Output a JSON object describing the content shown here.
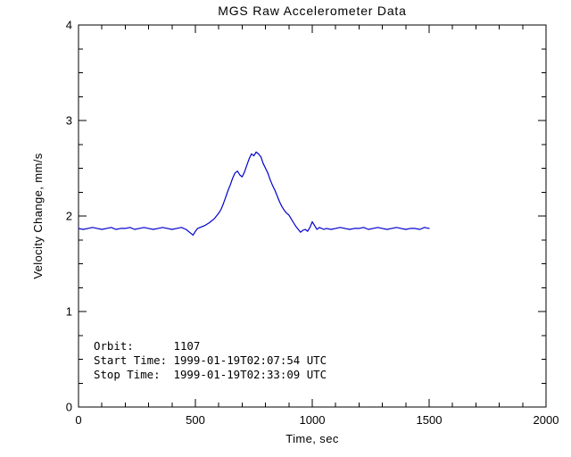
{
  "chart_data": {
    "type": "line",
    "title": "MGS Raw Accelerometer Data",
    "xlabel": "Time, sec",
    "ylabel": "Velocity Change, mm/s",
    "xlim": [
      0,
      2000
    ],
    "ylim": [
      0,
      4
    ],
    "xticks": [
      0,
      500,
      1000,
      1500,
      2000
    ],
    "yticks": [
      0,
      1,
      2,
      3,
      4
    ],
    "x_minor_step": 100,
    "y_minor_step": 0.25,
    "grid": false,
    "legend_position": "none",
    "line_color": "#0000cc",
    "axis_color": "#000000",
    "background_color": "#ffffff",
    "series": [
      {
        "name": "velocity-change",
        "x": [
          0,
          20,
          40,
          60,
          80,
          100,
          120,
          140,
          160,
          180,
          200,
          220,
          240,
          260,
          280,
          300,
          320,
          340,
          360,
          380,
          400,
          420,
          440,
          460,
          480,
          490,
          500,
          510,
          520,
          540,
          560,
          580,
          600,
          610,
          620,
          630,
          640,
          650,
          660,
          670,
          680,
          690,
          700,
          710,
          720,
          730,
          740,
          750,
          760,
          770,
          780,
          790,
          800,
          810,
          820,
          830,
          840,
          850,
          860,
          870,
          880,
          890,
          900,
          910,
          920,
          930,
          940,
          950,
          960,
          970,
          980,
          990,
          1000,
          1010,
          1020,
          1030,
          1040,
          1050,
          1060,
          1080,
          1100,
          1120,
          1140,
          1160,
          1180,
          1200,
          1220,
          1240,
          1260,
          1280,
          1300,
          1320,
          1340,
          1360,
          1380,
          1400,
          1420,
          1440,
          1460,
          1480,
          1500
        ],
        "y": [
          1.87,
          1.86,
          1.87,
          1.88,
          1.87,
          1.86,
          1.87,
          1.88,
          1.86,
          1.87,
          1.87,
          1.88,
          1.86,
          1.87,
          1.88,
          1.87,
          1.86,
          1.87,
          1.88,
          1.87,
          1.86,
          1.87,
          1.88,
          1.86,
          1.82,
          1.8,
          1.84,
          1.87,
          1.88,
          1.9,
          1.93,
          1.97,
          2.03,
          2.07,
          2.13,
          2.2,
          2.27,
          2.33,
          2.4,
          2.45,
          2.47,
          2.43,
          2.41,
          2.46,
          2.53,
          2.6,
          2.65,
          2.63,
          2.67,
          2.65,
          2.62,
          2.55,
          2.5,
          2.45,
          2.38,
          2.32,
          2.27,
          2.21,
          2.15,
          2.1,
          2.06,
          2.03,
          2.01,
          1.97,
          1.93,
          1.89,
          1.86,
          1.83,
          1.85,
          1.86,
          1.84,
          1.88,
          1.94,
          1.9,
          1.86,
          1.88,
          1.87,
          1.86,
          1.87,
          1.86,
          1.87,
          1.88,
          1.87,
          1.86,
          1.87,
          1.87,
          1.88,
          1.86,
          1.87,
          1.88,
          1.87,
          1.86,
          1.87,
          1.88,
          1.87,
          1.86,
          1.87,
          1.87,
          1.86,
          1.88,
          1.87
        ]
      }
    ],
    "annotations": [
      {
        "label": "Orbit:      1107"
      },
      {
        "label": "Start Time: 1999-01-19T02:07:54 UTC"
      },
      {
        "label": "Stop Time:  1999-01-19T02:33:09 UTC"
      }
    ]
  }
}
